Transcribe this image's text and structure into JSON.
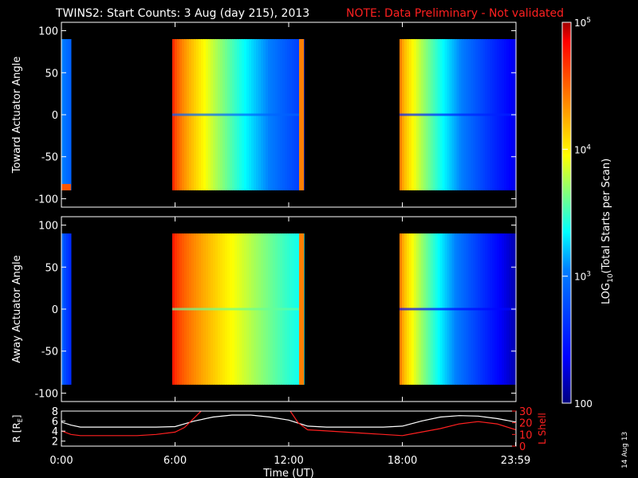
{
  "title": {
    "main": "TWINS2: Start Counts:  3 Aug (day 215), 2013",
    "note": "NOTE: Data Preliminary - Not validated"
  },
  "stamp": "14 Aug 13",
  "chart_data": [
    {
      "type": "heatmap",
      "name": "toward",
      "ylabel": "Toward Actuator Angle",
      "ylim": [
        -110,
        110
      ],
      "yticks": [
        100,
        50,
        0,
        -50,
        -100
      ],
      "xlim_hours": [
        0,
        24
      ],
      "angle_range": [
        -90,
        90
      ],
      "blocks": [
        {
          "t0": 0.0,
          "t1": 0.5,
          "start": 0.35,
          "end": 0.3,
          "edges": "low-bottom"
        },
        {
          "t0": 5.85,
          "t1": 12.8,
          "start": 0.9,
          "end": 0.22,
          "band": true,
          "edges": "warm-right"
        },
        {
          "t0": 17.85,
          "t1": 24.0,
          "start": 0.8,
          "end": 0.1,
          "band": true
        }
      ]
    },
    {
      "type": "heatmap",
      "name": "away",
      "ylabel": "Away Actuator Angle",
      "ylim": [
        -110,
        110
      ],
      "yticks": [
        100,
        50,
        0,
        -50,
        -100
      ],
      "xlim_hours": [
        0,
        24
      ],
      "angle_range": [
        -90,
        90
      ],
      "blocks": [
        {
          "t0": 0.0,
          "t1": 0.5,
          "start": 0.3,
          "end": 0.2
        },
        {
          "t0": 5.85,
          "t1": 12.8,
          "start": 0.92,
          "end": 0.45,
          "band": true,
          "edges": "warm-right"
        },
        {
          "t0": 17.85,
          "t1": 24.0,
          "start": 0.8,
          "end": 0.05,
          "band": true
        }
      ]
    },
    {
      "type": "line",
      "name": "orbit",
      "xlabel": "Time (UT)",
      "ylabel_left": "R [R",
      "ylabel_left_sub": "E",
      "ylabel_left_end": "]",
      "ylabel_right": "L Shell",
      "left_ylim": [
        1,
        8
      ],
      "left_yticks": [
        2,
        4,
        6,
        8
      ],
      "right_ylim": [
        0,
        30
      ],
      "right_yticks": [
        0,
        10,
        20,
        30
      ],
      "xticks": [
        "0:00",
        "6:00",
        "12:00",
        "18:00",
        "23:59"
      ],
      "xtick_hours": [
        0,
        6,
        12,
        18,
        23.98
      ],
      "series": [
        {
          "axis": "left",
          "color": "#ffffff",
          "x": [
            0,
            0.5,
            1,
            2,
            3,
            4,
            5,
            6,
            7,
            8,
            9,
            10,
            11,
            12,
            13,
            14,
            15,
            16,
            17,
            18,
            19,
            20,
            21,
            22,
            23,
            24
          ],
          "y": [
            5.8,
            5.2,
            4.8,
            4.8,
            4.8,
            4.8,
            4.8,
            4.9,
            6.0,
            6.8,
            7.2,
            7.2,
            6.8,
            6.2,
            5.0,
            4.8,
            4.8,
            4.8,
            4.8,
            5.0,
            6.0,
            6.8,
            7.1,
            7.0,
            6.5,
            5.8
          ]
        },
        {
          "axis": "right",
          "color": "#ff2020",
          "x": [
            0,
            0.5,
            1,
            2,
            3,
            4,
            5,
            6,
            6.5,
            7,
            7.5,
            12,
            12.5,
            13,
            14,
            15,
            16,
            17,
            18,
            19,
            20,
            21,
            22,
            23,
            24
          ],
          "y": [
            13,
            10,
            9,
            9,
            9,
            9,
            10,
            12,
            16,
            24,
            32,
            32,
            20,
            14,
            13,
            12,
            11,
            10,
            9,
            12,
            15,
            19,
            21,
            19,
            14
          ]
        }
      ]
    },
    {
      "type": "colorbar",
      "name": "colorbar",
      "label_main": "LOG",
      "label_sub": "10",
      "label_rest": "(Total Starts per Scan)",
      "ticks": [
        {
          "base": "10",
          "exp": "5",
          "v": 1.0
        },
        {
          "base": "10",
          "exp": "4",
          "v": 0.6667
        },
        {
          "base": "10",
          "exp": "3",
          "v": 0.3333
        },
        {
          "base": "100",
          "exp": "",
          "v": 0.0
        }
      ]
    }
  ]
}
